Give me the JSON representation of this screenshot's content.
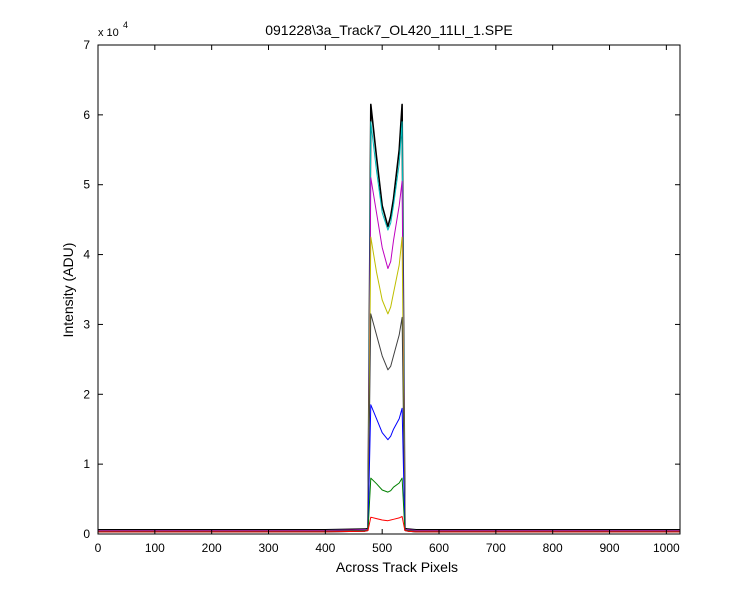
{
  "chart_data": {
    "type": "line",
    "title": "091228\\3a_Track7_OL420_11LI_1.SPE",
    "xlabel": "Across Track Pixels",
    "ylabel": "Intensity (ADU)",
    "xlim": [
      0,
      1024
    ],
    "ylim": [
      0,
      70000
    ],
    "x_ticks": [
      0,
      100,
      200,
      300,
      400,
      500,
      600,
      700,
      800,
      900,
      1000
    ],
    "y_ticks": [
      0,
      10000,
      20000,
      30000,
      40000,
      50000,
      60000,
      70000
    ],
    "y_tick_labels": [
      "0",
      "1",
      "2",
      "3",
      "4",
      "5",
      "6",
      "7"
    ],
    "y_exponent_label": "x 10",
    "y_exponent_power": "4",
    "grid": false,
    "colors": {
      "black": "#000000",
      "cyan": "#00bfbf",
      "magenta": "#bf00bf",
      "yellow": "#bfbf00",
      "gray": "#404040",
      "blue": "#0000ff",
      "green": "#008000",
      "red": "#ff0000"
    },
    "x": [
      0,
      100,
      200,
      300,
      400,
      470,
      475,
      480,
      490,
      500,
      510,
      515,
      520,
      530,
      535,
      540,
      545,
      560,
      600,
      700,
      800,
      900,
      1024
    ],
    "series": [
      {
        "color": "black",
        "values": [
          600,
          600,
          600,
          600,
          600,
          700,
          800,
          61500,
          54000,
          47000,
          44000,
          45500,
          48000,
          55000,
          61500,
          800,
          700,
          600,
          600,
          600,
          600,
          600,
          600
        ]
      },
      {
        "color": "cyan",
        "values": [
          500,
          500,
          500,
          500,
          500,
          600,
          700,
          59000,
          52000,
          46000,
          43500,
          44500,
          47000,
          53000,
          59000,
          700,
          600,
          500,
          500,
          500,
          500,
          500,
          500
        ]
      },
      {
        "color": "magenta",
        "values": [
          500,
          500,
          500,
          500,
          500,
          600,
          700,
          51000,
          46000,
          41000,
          38000,
          39000,
          42000,
          47000,
          50500,
          700,
          600,
          500,
          500,
          500,
          500,
          500,
          500
        ]
      },
      {
        "color": "yellow",
        "values": [
          400,
          400,
          400,
          400,
          400,
          500,
          600,
          42500,
          37500,
          33500,
          31500,
          32500,
          34500,
          38500,
          42500,
          600,
          500,
          400,
          400,
          400,
          400,
          400,
          400
        ]
      },
      {
        "color": "gray",
        "values": [
          400,
          400,
          400,
          400,
          400,
          500,
          600,
          31500,
          28500,
          25500,
          23500,
          24000,
          25500,
          28500,
          31000,
          600,
          500,
          400,
          400,
          400,
          400,
          400,
          400
        ]
      },
      {
        "color": "blue",
        "values": [
          300,
          300,
          300,
          300,
          300,
          400,
          500,
          18500,
          16500,
          14500,
          13500,
          14000,
          15000,
          16500,
          18000,
          500,
          400,
          300,
          300,
          300,
          300,
          300,
          300
        ]
      },
      {
        "color": "green",
        "values": [
          300,
          300,
          300,
          300,
          300,
          400,
          500,
          8000,
          7200,
          6300,
          6000,
          6200,
          6700,
          7300,
          8000,
          500,
          400,
          300,
          300,
          300,
          300,
          300,
          300
        ]
      },
      {
        "color": "red",
        "values": [
          300,
          300,
          300,
          300,
          300,
          400,
          500,
          2400,
          2200,
          2000,
          1900,
          2000,
          2100,
          2300,
          2500,
          500,
          400,
          300,
          300,
          300,
          300,
          300,
          300
        ]
      }
    ]
  }
}
